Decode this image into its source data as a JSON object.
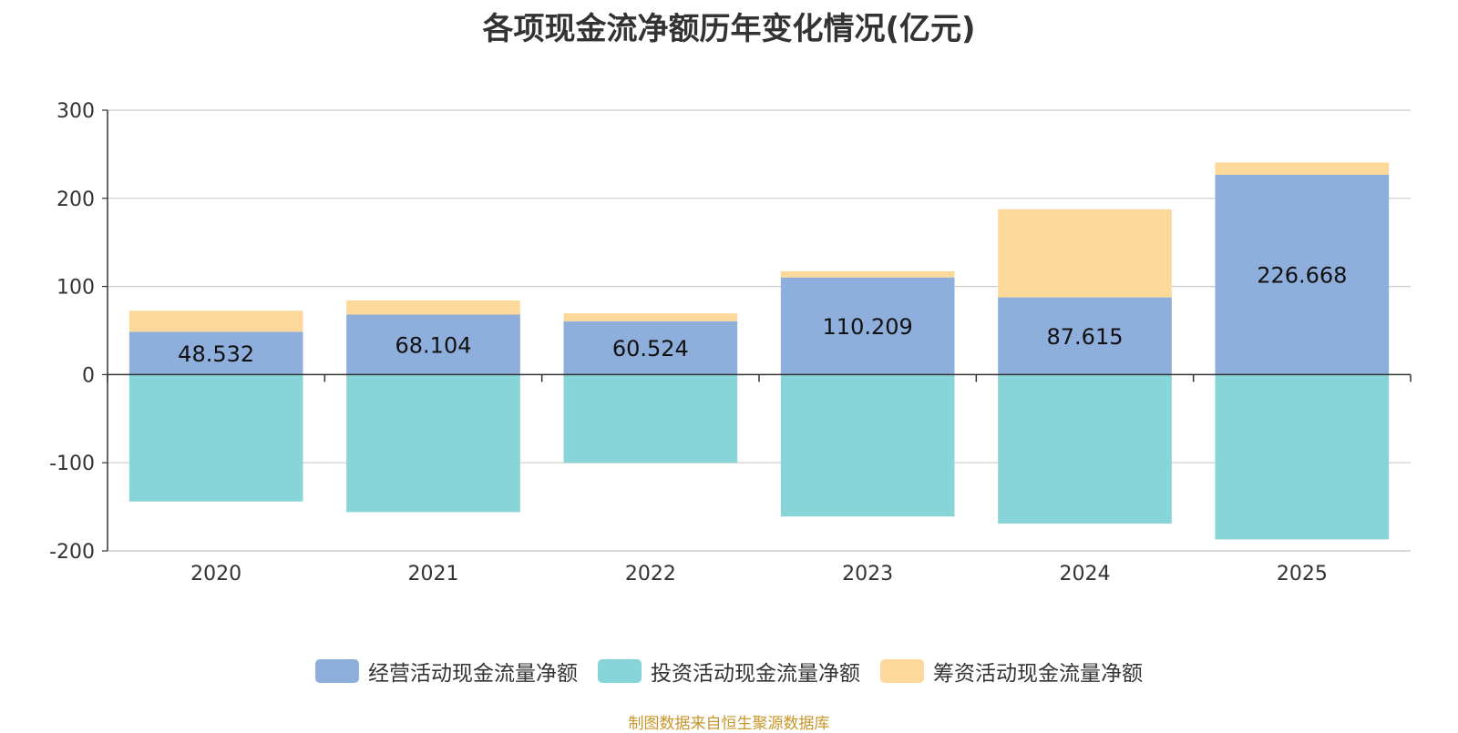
{
  "chart_data": {
    "type": "bar",
    "stacked": true,
    "title": "各项现金流净额历年变化情况(亿元)",
    "categories": [
      "2020",
      "2021",
      "2022",
      "2023",
      "2024",
      "2025"
    ],
    "series": [
      {
        "name": "经营活动现金流量净额",
        "color": "#8eaedb",
        "values": [
          48.532,
          68.104,
          60.524,
          110.209,
          87.615,
          226.668
        ],
        "show_labels": true
      },
      {
        "name": "投资活动现金流量净额",
        "color": "#88d5d9",
        "values": [
          -144,
          -156,
          -100,
          -161,
          -169,
          -187
        ],
        "show_labels": false
      },
      {
        "name": "筹资活动现金流量净额",
        "color": "#fdd89b",
        "values": [
          24,
          16,
          9,
          7,
          100,
          14
        ],
        "show_labels": false
      }
    ],
    "ylim": [
      -200,
      300
    ],
    "yticks": [
      300,
      200,
      100,
      0,
      -100,
      -200
    ],
    "grid": true,
    "legend_position": "bottom"
  },
  "source_note": "制图数据来自恒生聚源数据库"
}
